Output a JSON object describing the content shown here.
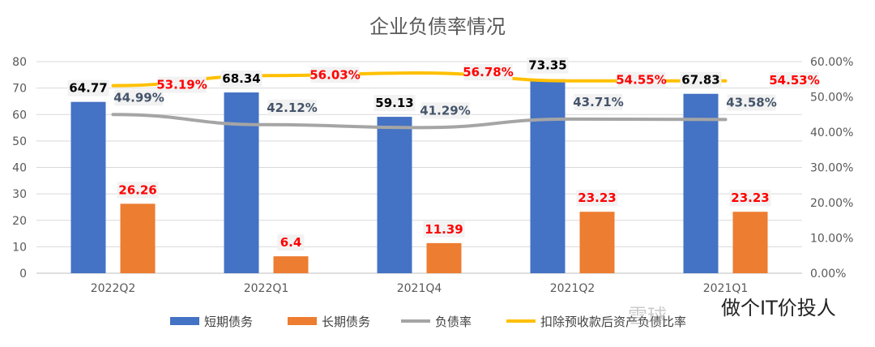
{
  "chart_data": {
    "type": "bar",
    "title": "企业负债率情况",
    "categories": [
      "2022Q2",
      "2022Q1",
      "2021Q4",
      "2021Q2",
      "2021Q1"
    ],
    "series": [
      {
        "name": "短期债务",
        "kind": "bar",
        "axis": "left",
        "color": "#4472c4",
        "values": [
          64.77,
          68.34,
          59.13,
          73.35,
          67.83
        ],
        "labels": [
          "64.77",
          "68.34",
          "59.13",
          "73.35",
          "67.83"
        ]
      },
      {
        "name": "长期债务",
        "kind": "bar",
        "axis": "left",
        "color": "#ed7d31",
        "values": [
          26.26,
          6.4,
          11.39,
          23.23,
          23.23
        ],
        "labels": [
          "26.26",
          "6.4",
          "11.39",
          "23.23",
          "23.23"
        ]
      },
      {
        "name": "负债率",
        "kind": "line",
        "axis": "right",
        "color": "#a5a5a5",
        "values": [
          44.99,
          42.12,
          41.29,
          43.71,
          43.58
        ],
        "labels": [
          "44.99%",
          "42.12%",
          "41.29%",
          "43.71%",
          "43.58%"
        ]
      },
      {
        "name": "扣除预收款后资产负债比率",
        "kind": "line",
        "axis": "right",
        "color": "#ffc000",
        "values": [
          53.19,
          56.03,
          56.78,
          54.55,
          54.53
        ],
        "labels": [
          "53.19%",
          "56.03%",
          "56.78%",
          "54.55%",
          "54.53%"
        ]
      }
    ],
    "y_left": {
      "range": [
        0,
        80
      ],
      "ticks": [
        "0",
        "10",
        "20",
        "30",
        "40",
        "50",
        "60",
        "70",
        "80"
      ]
    },
    "y_right": {
      "range": [
        0,
        60
      ],
      "ticks": [
        "0.00%",
        "10.00%",
        "20.00%",
        "30.00%",
        "40.00%",
        "50.00%",
        "60.00%"
      ]
    },
    "grid": true,
    "legend_position": "bottom"
  },
  "watermark": {
    "text1": "雪球",
    "text2": "做个IT价投人"
  }
}
